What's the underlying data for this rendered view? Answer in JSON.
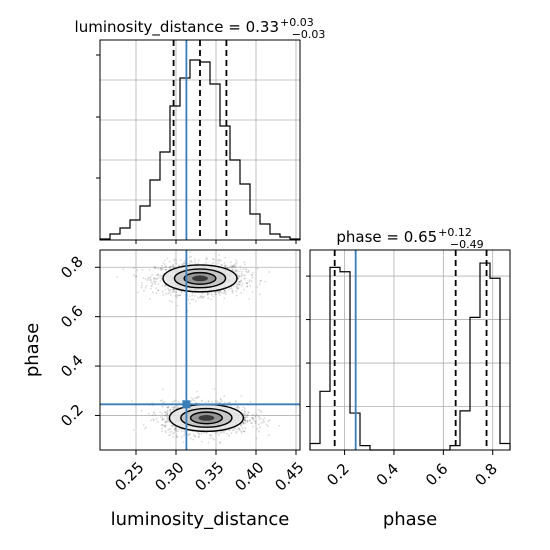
{
  "chart_data": {
    "type": "corner",
    "truth_color": "#3a7eb8",
    "parameters": [
      {
        "name": "luminosity_distance",
        "label": "luminosity_distance",
        "range": [
          0.205,
          0.455
        ],
        "truth": 0.313,
        "quantiles": [
          0.297,
          0.33,
          0.363
        ],
        "title_main": "luminosity_distance = 0.33",
        "title_plus": "+0.03",
        "title_minus": "−0.03",
        "ticks": [
          0.25,
          0.3,
          0.35,
          0.4,
          0.45
        ],
        "tick_labels": [
          "0.25",
          "0.30",
          "0.35",
          "0.40",
          "0.45"
        ]
      },
      {
        "name": "phase",
        "label": "phase",
        "range": [
          0.06,
          0.87
        ],
        "truth": 0.245,
        "quantiles": [
          0.16,
          0.65,
          0.775
        ],
        "title_main": "phase = 0.65",
        "title_plus": "+0.12",
        "title_minus": "−0.49",
        "ticks": [
          0.2,
          0.4,
          0.6,
          0.8
        ],
        "tick_labels": [
          "0.2",
          "0.4",
          "0.6",
          "0.8"
        ]
      }
    ],
    "hist_distance": {
      "edges": [
        0.205,
        0.2175,
        0.23,
        0.2425,
        0.255,
        0.2675,
        0.28,
        0.2925,
        0.305,
        0.3175,
        0.33,
        0.3425,
        0.355,
        0.3675,
        0.38,
        0.3925,
        0.405,
        0.4175,
        0.43,
        0.4425,
        0.455
      ],
      "counts": [
        0.5,
        3,
        6,
        10,
        17,
        30,
        44,
        67,
        81,
        90,
        89,
        78,
        57,
        40,
        28,
        13,
        8,
        3,
        1.5,
        0.5
      ],
      "ylim": [
        0,
        100
      ]
    },
    "hist_phase": {
      "edges": [
        0.06,
        0.1005,
        0.141,
        0.1815,
        0.222,
        0.2625,
        0.303,
        0.3435,
        0.384,
        0.4245,
        0.465,
        0.5055,
        0.546,
        0.5865,
        0.627,
        0.6675,
        0.708,
        0.7485,
        0.789,
        0.8295,
        0.87
      ],
      "counts": [
        3,
        27,
        84,
        82,
        17,
        2,
        0,
        0,
        0,
        0,
        0,
        0,
        0,
        0,
        2,
        18,
        61,
        86,
        79,
        3
      ],
      "ylim": [
        0,
        92
      ]
    },
    "blobs_2d": [
      {
        "cx": 0.33,
        "cy": 0.755,
        "sx": 0.022,
        "sy": 0.026,
        "samples": 1500
      },
      {
        "cx": 0.338,
        "cy": 0.19,
        "sx": 0.022,
        "sy": 0.026,
        "samples": 1500
      }
    ]
  }
}
